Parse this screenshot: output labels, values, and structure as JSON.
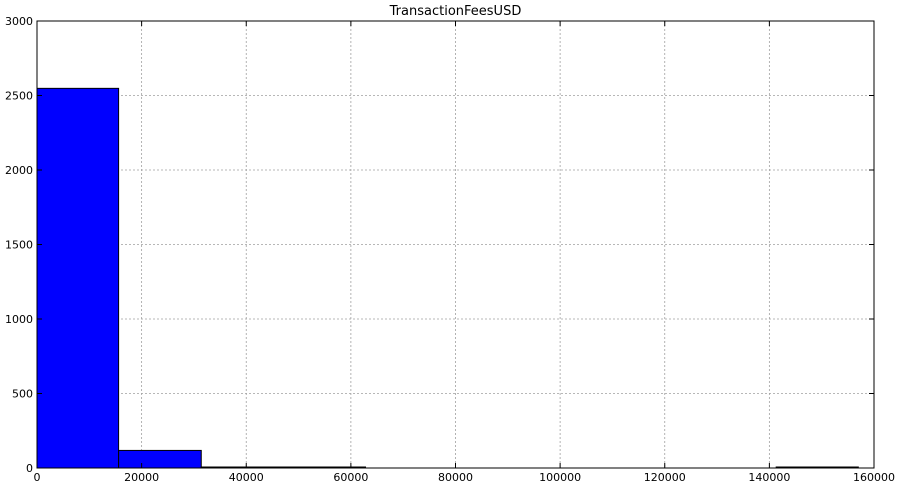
{
  "chart_data": {
    "type": "bar",
    "title": "TransactionFeesUSD",
    "xlabel": "",
    "ylabel": "",
    "xlim": [
      0,
      160000
    ],
    "ylim": [
      0,
      3000
    ],
    "xticks": [
      0,
      20000,
      40000,
      60000,
      80000,
      100000,
      120000,
      140000,
      160000
    ],
    "yticks": [
      0,
      500,
      1000,
      1500,
      2000,
      2500,
      3000
    ],
    "grid": true,
    "legend": "none",
    "bar_color": "#0000ff",
    "bins": [
      {
        "x0": 0,
        "x1": 15600,
        "count": 2548
      },
      {
        "x0": 15600,
        "x1": 31400,
        "count": 118
      },
      {
        "x0": 31400,
        "x1": 47100,
        "count": 5
      },
      {
        "x0": 47100,
        "x1": 62800,
        "count": 1
      },
      {
        "x0": 62800,
        "x1": 78500,
        "count": 0
      },
      {
        "x0": 78500,
        "x1": 94200,
        "count": 0
      },
      {
        "x0": 94200,
        "x1": 110000,
        "count": 0
      },
      {
        "x0": 110000,
        "x1": 125600,
        "count": 0
      },
      {
        "x0": 125600,
        "x1": 141300,
        "count": 0
      },
      {
        "x0": 141300,
        "x1": 157000,
        "count": 1
      }
    ]
  }
}
